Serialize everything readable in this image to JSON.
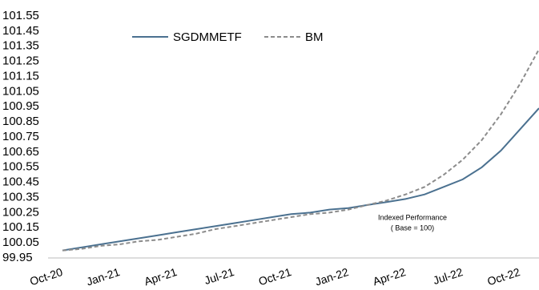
{
  "chart_data": {
    "type": "line",
    "categories": [
      "Oct-20",
      null,
      null,
      "Jan-21",
      null,
      null,
      "Apr-21",
      null,
      null,
      "Jul-21",
      null,
      null,
      "Oct-21",
      null,
      null,
      "Jan-22",
      null,
      null,
      "Apr-22",
      null,
      null,
      "Jul-22",
      null,
      null,
      "Oct-22",
      null
    ],
    "series": [
      {
        "name": "SGDMMETF",
        "color": "#4b7190",
        "dash": false,
        "values": [
          100.0,
          100.02,
          100.04,
          100.06,
          100.08,
          100.1,
          100.12,
          100.14,
          100.16,
          100.18,
          100.2,
          100.22,
          100.24,
          100.25,
          100.27,
          100.28,
          100.3,
          100.32,
          100.34,
          100.37,
          100.42,
          100.47,
          100.55,
          100.66,
          100.8,
          100.94
        ]
      },
      {
        "name": "BM",
        "color": "#8c8c8c",
        "dash": true,
        "values": [
          100.0,
          100.01,
          100.03,
          100.04,
          100.06,
          100.07,
          100.09,
          100.11,
          100.14,
          100.16,
          100.18,
          100.2,
          100.22,
          100.24,
          100.25,
          100.27,
          100.3,
          100.33,
          100.37,
          100.42,
          100.5,
          100.6,
          100.73,
          100.9,
          101.1,
          101.33
        ]
      }
    ],
    "ylim": [
      99.95,
      101.55
    ],
    "yticks": [
      99.95,
      100.05,
      100.15,
      100.25,
      100.35,
      100.45,
      100.55,
      100.65,
      100.75,
      100.85,
      100.95,
      101.05,
      101.15,
      101.25,
      101.35,
      101.45,
      101.55
    ],
    "annotations": [
      "Indexed Performance",
      "( Base = 100)"
    ],
    "grid": false
  }
}
